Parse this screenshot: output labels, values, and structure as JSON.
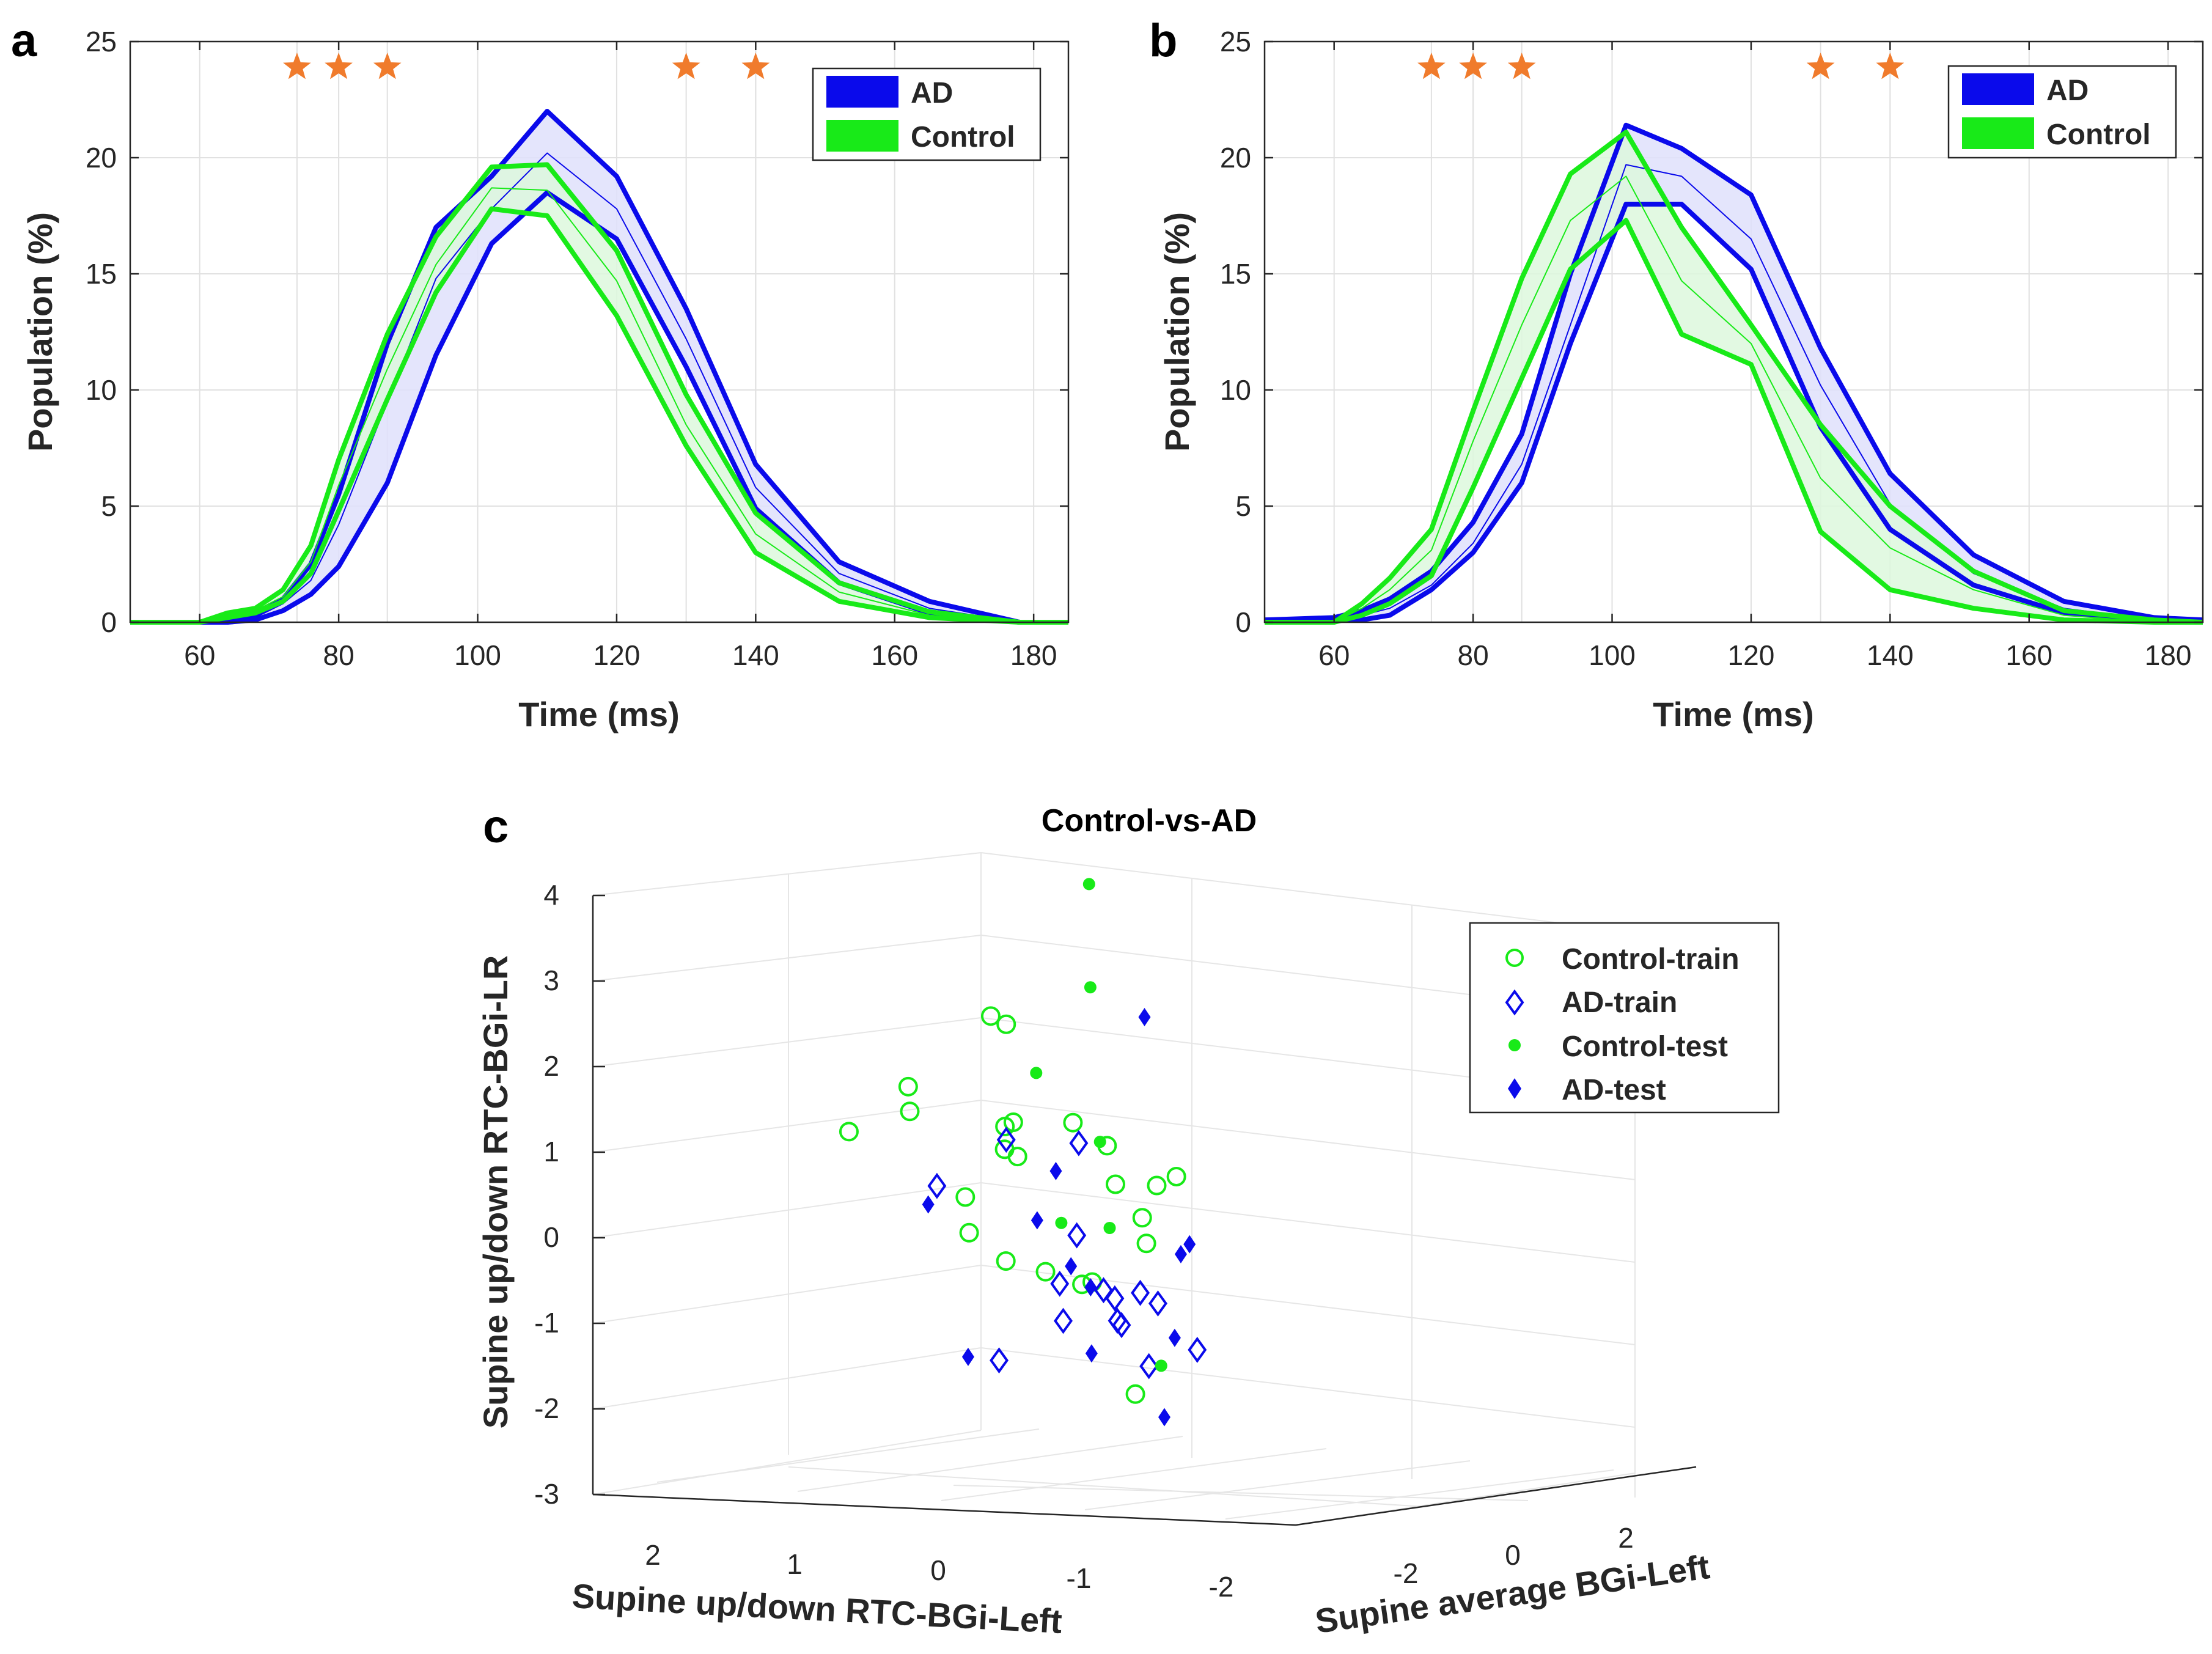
{
  "colors": {
    "ad": "#0a0aeb",
    "ad_fill": "#dfe0fb",
    "control": "#18ea18",
    "control_fill": "#ddf8dd",
    "star": "#f07b2c",
    "grid": "#e1e1e1",
    "axis": "#262626"
  },
  "panel_labels": {
    "a": "a",
    "b": "b",
    "c": "c"
  },
  "chart_data": [
    {
      "id": "a",
      "type": "line",
      "xlabel": "Time (ms)",
      "ylabel": "Population (%)",
      "xlim": [
        50,
        185
      ],
      "ylim": [
        0,
        25
      ],
      "xticks": [
        60,
        80,
        100,
        120,
        140,
        160,
        180
      ],
      "yticks": [
        0,
        5,
        10,
        15,
        20,
        25
      ],
      "x": [
        50,
        60,
        64,
        68,
        72,
        76,
        80,
        87,
        94,
        102,
        110,
        120,
        130,
        140,
        152,
        165,
        178,
        185
      ],
      "series": [
        {
          "name": "AD",
          "upper": [
            0,
            0,
            0,
            0.3,
            1.0,
            2.5,
            5.5,
            12,
            17,
            19.2,
            22,
            19.2,
            13.5,
            6.8,
            2.6,
            0.9,
            0,
            0
          ],
          "mean": [
            0,
            0,
            0,
            0.2,
            0.8,
            1.8,
            4.2,
            9.5,
            14.8,
            17.8,
            20.2,
            17.8,
            12.2,
            5.8,
            2.1,
            0.6,
            0,
            0
          ],
          "lower": [
            0,
            0,
            0,
            0.1,
            0.5,
            1.2,
            2.4,
            6,
            11.5,
            16.3,
            18.5,
            16.5,
            11,
            4.9,
            1.7,
            0.4,
            0,
            0
          ]
        },
        {
          "name": "Control",
          "upper": [
            0,
            0,
            0.4,
            0.6,
            1.4,
            3.3,
            7,
            12.4,
            16.6,
            19.6,
            19.7,
            16,
            9.8,
            4.7,
            1.7,
            0.45,
            0,
            0
          ],
          "mean": [
            0,
            0,
            0.3,
            0.5,
            1.1,
            2.6,
            5.9,
            10.9,
            15.4,
            18.7,
            18.6,
            14.7,
            8.5,
            3.8,
            1.3,
            0.3,
            0,
            0
          ],
          "lower": [
            0,
            0,
            0.2,
            0.4,
            0.9,
            2.1,
            4.8,
            9.6,
            14.2,
            17.8,
            17.5,
            13.2,
            7.6,
            3,
            0.9,
            0.2,
            0,
            0
          ]
        }
      ],
      "significance_x": [
        74,
        80,
        87,
        130,
        140
      ],
      "legend": [
        "AD",
        "Control"
      ],
      "legend_position": "top-right"
    },
    {
      "id": "b",
      "type": "line",
      "xlabel": "Time (ms)",
      "ylabel": "Population (%)",
      "xlim": [
        50,
        185
      ],
      "ylim": [
        0,
        25
      ],
      "xticks": [
        60,
        80,
        100,
        120,
        140,
        160,
        180
      ],
      "yticks": [
        0,
        5,
        10,
        15,
        20,
        25
      ],
      "x": [
        50,
        60,
        64,
        68,
        74,
        80,
        87,
        94,
        102,
        110,
        120,
        130,
        140,
        152,
        165,
        178,
        185
      ],
      "series": [
        {
          "name": "AD",
          "upper": [
            0.1,
            0.2,
            0.5,
            1.0,
            2.2,
            4.3,
            8.1,
            15,
            21.4,
            20.4,
            18.4,
            11.8,
            6.4,
            2.9,
            0.9,
            0.2,
            0.1
          ],
          "mean": [
            0.1,
            0.1,
            0.3,
            0.6,
            1.6,
            3.4,
            6.8,
            12.8,
            19.7,
            19.2,
            16.5,
            10.2,
            5.1,
            2.1,
            0.6,
            0.1,
            0.1
          ],
          "lower": [
            0.1,
            0.1,
            0.1,
            0.3,
            1.4,
            3,
            6,
            12,
            18,
            18,
            15.2,
            8.4,
            4,
            1.6,
            0.4,
            0.1,
            0.1
          ]
        },
        {
          "name": "Control",
          "upper": [
            0,
            0,
            0.8,
            1.9,
            4,
            9.1,
            14.8,
            19.3,
            21.1,
            17,
            12.8,
            8.5,
            5,
            2.2,
            0.5,
            0.1,
            0
          ],
          "mean": [
            0,
            0,
            0.6,
            1.4,
            3.1,
            7.8,
            12.8,
            17.3,
            19.2,
            14.7,
            12,
            6.2,
            3.2,
            1.4,
            0.3,
            0,
            0
          ],
          "lower": [
            0,
            0,
            0.3,
            0.8,
            2.0,
            5.8,
            10.5,
            15.2,
            17.3,
            12.4,
            11.1,
            3.9,
            1.4,
            0.6,
            0.1,
            0,
            0
          ]
        }
      ],
      "significance_x": [
        74,
        80,
        87,
        130,
        140
      ],
      "legend": [
        "AD",
        "Control"
      ],
      "legend_position": "top-right"
    },
    {
      "id": "c",
      "type": "scatter",
      "title": "Control-vs-AD",
      "xlabel": "Supine up/down RTC-BGi-Left",
      "ylabel": "Supine average BGi-Left",
      "zlabel": "Supine up/down RTC-BGi-LR",
      "xticks": [
        "2",
        "1",
        "0",
        "-1",
        "-2"
      ],
      "yticks": [
        "-2",
        "0",
        "2"
      ],
      "zticks": [
        "4",
        "3",
        "2",
        "1",
        "0",
        "-1",
        "-2",
        "-3"
      ],
      "legend": [
        "Control-train",
        "AD-train",
        "Control-test",
        "AD-test"
      ],
      "legend_position": "top-right",
      "series": [
        {
          "name": "Control-train",
          "marker": "open-circle",
          "points": [
            [
              0.65,
              0.05,
              1.3
            ],
            [
              0.18,
              -0.05,
              1.5
            ],
            [
              0.13,
              -0.2,
              1.8
            ],
            [
              -0.35,
              0.05,
              2.55
            ],
            [
              -0.5,
              -0.05,
              2.45
            ],
            [
              -0.55,
              -0.05,
              1.3
            ],
            [
              -0.45,
              0.05,
              1.25
            ],
            [
              -0.55,
              -0.2,
              1.0
            ],
            [
              -0.6,
              -0.1,
              0.9
            ],
            [
              -0.95,
              0.0,
              1.25
            ],
            [
              -1.15,
              0.1,
              0.95
            ],
            [
              -1.25,
              0.0,
              0.5
            ],
            [
              -0.15,
              0.1,
              0.45
            ],
            [
              -0.3,
              -0.2,
              0.05
            ],
            [
              -0.6,
              -0.3,
              -0.3
            ],
            [
              -0.9,
              -0.35,
              -0.45
            ],
            [
              -1.25,
              -0.4,
              -0.6
            ],
            [
              -1.5,
              0.1,
              0.45
            ],
            [
              -1.5,
              -0.15,
              0.1
            ],
            [
              -1.7,
              -0.05,
              0.55
            ],
            [
              -1.55,
              -0.2,
              -0.2
            ],
            [
              -1.3,
              -0.7,
              -0.6
            ],
            [
              -1.8,
              -1.0,
              -1.9
            ]
          ]
        },
        {
          "name": "AD-train",
          "marker": "open-diamond",
          "points": [
            [
              -0.5,
              -0.05,
              1.1
            ],
            [
              -0.95,
              0.1,
              1.0
            ],
            [
              0.05,
              0.1,
              0.6
            ],
            [
              -1.1,
              -0.3,
              -0.05
            ],
            [
              -1.0,
              -0.35,
              -0.6
            ],
            [
              -1.35,
              -0.45,
              -0.7
            ],
            [
              -1.45,
              -0.5,
              -0.8
            ],
            [
              -1.65,
              -0.55,
              -0.75
            ],
            [
              -1.55,
              -0.7,
              -1.05
            ],
            [
              -1.6,
              -0.75,
              -1.1
            ],
            [
              -1.25,
              -0.9,
              -1.0
            ],
            [
              -0.9,
              -1.15,
              -1.4
            ],
            [
              -2.0,
              -1.1,
              -0.85
            ],
            [
              -2.1,
              -1.5,
              -1.55
            ],
            [
              -2.4,
              -1.4,
              -1.4
            ]
          ]
        },
        {
          "name": "Control-test",
          "marker": "filled-circle",
          "points": [
            [
              -0.9,
              0.4,
              4.0
            ],
            [
              -0.95,
              0.3,
              2.8
            ],
            [
              -0.65,
              0.1,
              1.85
            ],
            [
              -1.1,
              0.1,
              1.0
            ],
            [
              -0.95,
              -0.2,
              0.1
            ],
            [
              -1.25,
              -0.1,
              0.0
            ],
            [
              -1.9,
              -0.8,
              -1.6
            ]
          ]
        },
        {
          "name": "AD-test",
          "marker": "filled-diamond",
          "points": [
            [
              -1.25,
              0.5,
              2.4
            ],
            [
              -0.85,
              -0.05,
              0.7
            ],
            [
              -0.8,
              -0.25,
              0.15
            ],
            [
              0.05,
              -0.05,
              0.4
            ],
            [
              -1.1,
              -0.4,
              -0.4
            ],
            [
              -1.3,
              -0.55,
              -0.65
            ],
            [
              -0.6,
              -0.95,
              -1.35
            ],
            [
              -1.45,
              -0.9,
              -1.4
            ],
            [
              -2.1,
              -0.8,
              -0.2
            ],
            [
              -2.1,
              -0.95,
              -0.3
            ],
            [
              -2.2,
              -1.3,
              -1.25
            ],
            [
              -2.25,
              -1.6,
              -2.15
            ]
          ]
        }
      ]
    }
  ]
}
